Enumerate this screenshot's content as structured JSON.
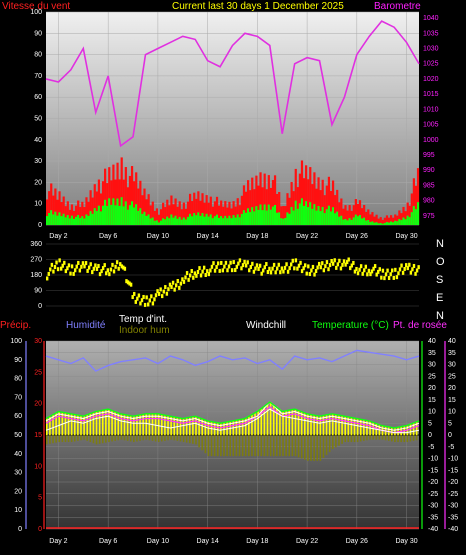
{
  "header": {
    "wind_label": "Vitesse du vent",
    "title": "Current last 30 days 1 December 2025",
    "baro_label": "Barometre"
  },
  "colors": {
    "wind_label": "#ff2020",
    "title": "#ffff00",
    "baro_label": "#ff20ff",
    "barometer_line": "#e030e0",
    "gust": "#ff1010",
    "wind": "#10ff10",
    "direction": "#ffff00",
    "precip": "#ff2020",
    "humidity": "#8080ff",
    "temp_int": "#ffffff",
    "indoor_hum": "#808000",
    "windchill": "#ffffff",
    "temperature": "#10ff10",
    "dewpoint": "#ff30ff"
  },
  "middle": {
    "compass": [
      "N",
      "O",
      "S",
      "E",
      "N"
    ]
  },
  "bottom_labels": {
    "precip": "Précip.",
    "humidity": "Humidité",
    "temp_int": "Temp d'int.",
    "indoor_hum": "Indoor hum",
    "windchill": "Windchill",
    "temperature": "Temperature (°C)",
    "dewpoint": "Pt. de rosée"
  },
  "chart_data": [
    {
      "type": "area",
      "title": "Current last 30 days 1 December 2025",
      "xlabel": "",
      "ylabel": "Vitesse du vent",
      "x_ticks": [
        "Day 2",
        "Day 6",
        "Day 10",
        "Day 14",
        "Day 18",
        "Day 22",
        "Day 26",
        "Day 30"
      ],
      "y_ticks": [
        "0",
        "10",
        "20",
        "30",
        "40",
        "50",
        "60",
        "70",
        "80",
        "90",
        "100"
      ],
      "ylim": [
        0,
        100
      ],
      "y2_label": "Barometre",
      "y2_ticks": [
        "975",
        "980",
        "985",
        "990",
        "995",
        "1000",
        "1005",
        "1010",
        "1015",
        "1020",
        "1025",
        "1030",
        "1035",
        "1040"
      ],
      "y2lim": [
        972,
        1042
      ],
      "x": [
        1,
        2,
        3,
        4,
        5,
        6,
        7,
        8,
        9,
        10,
        11,
        12,
        13,
        14,
        15,
        16,
        17,
        18,
        19,
        20,
        21,
        22,
        23,
        24,
        25,
        26,
        27,
        28,
        29,
        30,
        31
      ],
      "series": [
        {
          "name": "Barometre",
          "axis": "right",
          "values": [
            1020,
            1019,
            1023,
            1030,
            1009,
            1021,
            998,
            1001,
            1028,
            1030,
            1032,
            1034,
            1033,
            1026,
            1024,
            1031,
            1035,
            1034,
            1031,
            1002,
            1025,
            1027,
            1026,
            1005,
            1014,
            1028,
            1034,
            1039,
            1037,
            1032,
            1025
          ]
        },
        {
          "name": "Gust",
          "values": [
            20,
            16,
            11,
            11,
            24,
            26,
            34,
            25,
            17,
            8,
            14,
            12,
            16,
            16,
            11,
            12,
            19,
            26,
            29,
            9,
            30,
            28,
            25,
            20,
            10,
            12,
            7,
            4,
            5,
            12,
            30
          ]
        },
        {
          "name": "Wind",
          "values": [
            7,
            6,
            5,
            4,
            10,
            12,
            14,
            10,
            6,
            2,
            5,
            4,
            6,
            6,
            4,
            5,
            7,
            10,
            12,
            3,
            13,
            11,
            10,
            8,
            3,
            5,
            2,
            1,
            2,
            5,
            12
          ]
        }
      ]
    },
    {
      "type": "scatter",
      "ylabel": "Wind direction",
      "y_ticks": [
        "0",
        "90",
        "180",
        "270",
        "360"
      ],
      "ylim": [
        0,
        360
      ],
      "x": [
        1,
        2,
        3,
        4,
        5,
        6,
        7,
        8,
        9,
        10,
        11,
        12,
        13,
        14,
        15,
        16,
        17,
        18,
        19,
        20,
        21,
        22,
        23,
        24,
        25,
        26,
        27,
        28,
        29,
        30,
        31
      ],
      "series": [
        {
          "name": "Direction",
          "values": [
            190,
            240,
            215,
            225,
            220,
            200,
            255,
            40,
            30,
            60,
            110,
            150,
            195,
            215,
            225,
            240,
            230,
            220,
            210,
            225,
            235,
            210,
            215,
            245,
            250,
            210,
            215,
            180,
            195,
            215,
            210
          ]
        }
      ]
    },
    {
      "type": "line",
      "xlabel": "",
      "x_ticks": [
        "Day 2",
        "Day 6",
        "Day 10",
        "Day 14",
        "Day 18",
        "Day 22",
        "Day 26",
        "Day 30"
      ],
      "y_left_ticks": [
        "0",
        "10",
        "20",
        "30",
        "40",
        "50",
        "60",
        "70",
        "80",
        "90",
        "100"
      ],
      "ylim_left": [
        0,
        100
      ],
      "y_precip_ticks": [
        "0",
        "5",
        "10",
        "15",
        "20",
        "25",
        "30"
      ],
      "ylim_precip": [
        0,
        30
      ],
      "y_right_ticks": [
        "-40",
        "-35",
        "-30",
        "-25",
        "-20",
        "-15",
        "-10",
        "-5",
        "0",
        "5",
        "10",
        "15",
        "20",
        "25",
        "30",
        "35",
        "40"
      ],
      "ylim_right": [
        -40,
        40
      ],
      "x": [
        1,
        2,
        3,
        4,
        5,
        6,
        7,
        8,
        9,
        10,
        11,
        12,
        13,
        14,
        15,
        16,
        17,
        18,
        19,
        20,
        21,
        22,
        23,
        24,
        25,
        26,
        27,
        28,
        29,
        30,
        31
      ],
      "series": [
        {
          "name": "Humidité",
          "axis": "left",
          "values": [
            92,
            90,
            88,
            91,
            84,
            87,
            89,
            90,
            91,
            88,
            92,
            90,
            87,
            89,
            92,
            90,
            91,
            88,
            90,
            85,
            92,
            90,
            91,
            89,
            92,
            95,
            94,
            93,
            92,
            90,
            92
          ]
        },
        {
          "name": "Temp d'int.",
          "axis": "right",
          "values": [
            2,
            4,
            6,
            5,
            7,
            8,
            6,
            5,
            5,
            4,
            3,
            4,
            5,
            3,
            2,
            3,
            4,
            7,
            11,
            8,
            7,
            6,
            5,
            6,
            5,
            4,
            3,
            2,
            1,
            1,
            2
          ]
        },
        {
          "name": "Indoor hum",
          "axis": "right",
          "values": [
            -4,
            -3,
            -3,
            -2,
            -4,
            -3,
            -2,
            -3,
            -2,
            -3,
            -2,
            -3,
            -4,
            -9,
            -9,
            -9,
            -9,
            -9,
            -9,
            -9,
            -9,
            -11,
            -11,
            -6,
            -3,
            -3,
            -2,
            -2,
            -3,
            -3,
            -2
          ]
        },
        {
          "name": "Windchill",
          "axis": "right",
          "values": [
            6,
            9,
            8,
            7,
            9,
            10,
            8,
            7,
            8,
            8,
            7,
            6,
            7,
            5,
            4,
            5,
            6,
            8,
            14,
            9,
            10,
            8,
            7,
            8,
            7,
            6,
            5,
            3,
            2,
            3,
            5
          ]
        },
        {
          "name": "Temperature (°C)",
          "axis": "right",
          "values": [
            7,
            10,
            9,
            8,
            10,
            11,
            9,
            8,
            9,
            9,
            8,
            7,
            8,
            6,
            5,
            6,
            7,
            10,
            14,
            10,
            11,
            9,
            8,
            9,
            8,
            7,
            6,
            4,
            3,
            4,
            6
          ]
        },
        {
          "name": "Pt. de rosée",
          "axis": "right",
          "values": [
            5,
            8,
            7,
            6,
            8,
            9,
            7,
            6,
            7,
            7,
            6,
            5,
            6,
            4,
            3,
            4,
            5,
            8,
            12,
            8,
            9,
            7,
            6,
            7,
            6,
            5,
            4,
            2,
            1,
            2,
            4
          ]
        },
        {
          "name": "Précip.",
          "axis": "precip",
          "values": [
            0,
            0,
            0,
            0,
            0,
            0,
            0,
            0,
            0,
            0,
            0,
            0,
            0,
            0,
            0,
            0,
            0,
            0,
            0,
            0,
            0,
            0,
            0,
            0,
            0,
            0,
            0,
            0,
            0,
            0,
            0
          ]
        }
      ]
    }
  ]
}
